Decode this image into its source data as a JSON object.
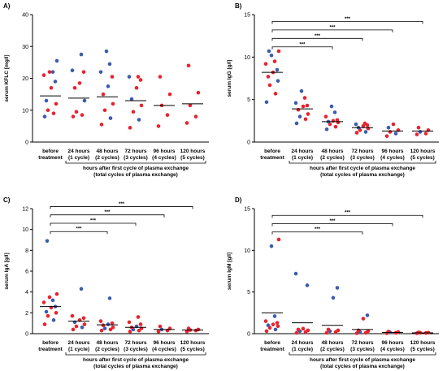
{
  "colors": {
    "blue": "#3a5dae",
    "red": "#e8232d",
    "axis": "#000000"
  },
  "x_axis_caption": {
    "line1": "hours after first cycle of plasma exchange",
    "line2": "(total cycles of plasma exchange)"
  },
  "categories": [
    [
      "before",
      "treatment"
    ],
    [
      "24 hours",
      "(1 cycle)"
    ],
    [
      "48 hours",
      "(2 cycles)"
    ],
    [
      "72 hours",
      "(3 cycles)"
    ],
    [
      "96 hours",
      "(4 cycles)"
    ],
    [
      "120 hours",
      "(5 cycles)"
    ]
  ],
  "chart_data": [
    {
      "panel": "A)",
      "type": "scatter",
      "ylabel": "serum KFLC [mg/l]",
      "ylim": [
        0,
        40
      ],
      "yticks": [
        0,
        10,
        20,
        30,
        40
      ],
      "means": [
        14.5,
        13.8,
        14.2,
        13.0,
        11.5,
        12.0
      ],
      "points": [
        [
          [
            8,
            "b"
          ],
          [
            9,
            "r"
          ],
          [
            10,
            "r"
          ],
          [
            12,
            "r"
          ],
          [
            13,
            "b"
          ],
          [
            17,
            "r"
          ],
          [
            19,
            "b"
          ],
          [
            21,
            "r"
          ],
          [
            22,
            "b"
          ],
          [
            22,
            "r"
          ],
          [
            25.5,
            "b"
          ]
        ],
        [
          [
            8,
            "r"
          ],
          [
            8.5,
            "r"
          ],
          [
            9.5,
            "r"
          ],
          [
            13,
            "b"
          ],
          [
            17,
            "r"
          ],
          [
            18.5,
            "r"
          ],
          [
            22,
            "r"
          ],
          [
            22.5,
            "b"
          ],
          [
            27.5,
            "b"
          ]
        ],
        [
          [
            5.5,
            "r"
          ],
          [
            7.5,
            "b"
          ],
          [
            10,
            "r"
          ],
          [
            12,
            "r"
          ],
          [
            15,
            "r"
          ],
          [
            17.5,
            "b"
          ],
          [
            20.5,
            "r"
          ],
          [
            22,
            "b"
          ],
          [
            24.5,
            "b"
          ],
          [
            28.5,
            "b"
          ]
        ],
        [
          [
            4.5,
            "r"
          ],
          [
            7,
            "b"
          ],
          [
            9.5,
            "r"
          ],
          [
            11.5,
            "r"
          ],
          [
            13.5,
            "b"
          ],
          [
            17,
            "r"
          ],
          [
            19.5,
            "r"
          ],
          [
            20.5,
            "b"
          ],
          [
            20.5,
            "r"
          ]
        ],
        [
          [
            5,
            "r"
          ],
          [
            8.5,
            "r"
          ],
          [
            11.5,
            "r"
          ],
          [
            15,
            "r"
          ],
          [
            20.5,
            "r"
          ]
        ],
        [
          [
            6,
            "r"
          ],
          [
            8,
            "r"
          ],
          [
            11.5,
            "r"
          ],
          [
            15.5,
            "r"
          ],
          [
            24,
            "r"
          ]
        ]
      ],
      "brackets": []
    },
    {
      "panel": "B)",
      "type": "scatter",
      "ylabel": "serum IgG [g/l]",
      "ylim": [
        0,
        15
      ],
      "yticks": [
        0,
        5,
        10,
        15
      ],
      "means": [
        8.2,
        3.9,
        2.4,
        1.7,
        1.3,
        1.3
      ],
      "points": [
        [
          [
            4.7,
            "b"
          ],
          [
            5.7,
            "r"
          ],
          [
            6.7,
            "r"
          ],
          [
            7.2,
            "b"
          ],
          [
            7.7,
            "r"
          ],
          [
            8.2,
            "r"
          ],
          [
            8.5,
            "b"
          ],
          [
            9.2,
            "r"
          ],
          [
            9.5,
            "r"
          ],
          [
            10.2,
            "b"
          ],
          [
            10.7,
            "r"
          ],
          [
            10.7,
            "b"
          ]
        ],
        [
          [
            2.2,
            "b"
          ],
          [
            2.7,
            "r"
          ],
          [
            3.0,
            "b"
          ],
          [
            3.3,
            "r"
          ],
          [
            3.8,
            "r"
          ],
          [
            4.2,
            "r"
          ],
          [
            4.3,
            "r"
          ],
          [
            4.6,
            "b"
          ],
          [
            5.2,
            "r"
          ],
          [
            6.0,
            "b"
          ]
        ],
        [
          [
            1.5,
            "b"
          ],
          [
            1.8,
            "r"
          ],
          [
            2.1,
            "r"
          ],
          [
            2.3,
            "r"
          ],
          [
            2.4,
            "b"
          ],
          [
            2.5,
            "r"
          ],
          [
            2.6,
            "r"
          ],
          [
            3.0,
            "r"
          ],
          [
            3.5,
            "b"
          ],
          [
            4.2,
            "b"
          ]
        ],
        [
          [
            1.1,
            "r"
          ],
          [
            1.2,
            "b"
          ],
          [
            1.4,
            "r"
          ],
          [
            1.6,
            "r"
          ],
          [
            1.7,
            "b"
          ],
          [
            1.9,
            "r"
          ],
          [
            2.0,
            "r"
          ],
          [
            2.1,
            "b"
          ],
          [
            2.2,
            "r"
          ]
        ],
        [
          [
            0.7,
            "r"
          ],
          [
            1.0,
            "b"
          ],
          [
            1.2,
            "r"
          ],
          [
            1.4,
            "r"
          ],
          [
            1.7,
            "b"
          ],
          [
            2.1,
            "r"
          ]
        ],
        [
          [
            0.9,
            "r"
          ],
          [
            1.0,
            "r"
          ],
          [
            1.2,
            "b"
          ],
          [
            1.4,
            "r"
          ],
          [
            1.7,
            "r"
          ]
        ]
      ],
      "brackets": [
        {
          "to": 2,
          "y": 11.2,
          "label": "***"
        },
        {
          "to": 3,
          "y": 12.2,
          "label": "***"
        },
        {
          "to": 4,
          "y": 13.2,
          "label": "***"
        },
        {
          "to": 5,
          "y": 14.2,
          "label": "***"
        }
      ]
    },
    {
      "panel": "C)",
      "type": "scatter",
      "ylabel": "serum IgA [g/l]",
      "ylim": [
        0,
        12
      ],
      "yticks": [
        0,
        2,
        4,
        6,
        8,
        10,
        12
      ],
      "means": [
        2.6,
        1.2,
        0.85,
        0.6,
        0.4,
        0.35
      ],
      "points": [
        [
          [
            0.9,
            "r"
          ],
          [
            1.3,
            "b"
          ],
          [
            1.7,
            "r"
          ],
          [
            2.0,
            "r"
          ],
          [
            2.1,
            "b"
          ],
          [
            2.5,
            "r"
          ],
          [
            2.6,
            "b"
          ],
          [
            3.0,
            "r"
          ],
          [
            3.2,
            "b"
          ],
          [
            3.5,
            "r"
          ],
          [
            3.8,
            "r"
          ],
          [
            8.9,
            "b"
          ]
        ],
        [
          [
            0.4,
            "r"
          ],
          [
            0.6,
            "b"
          ],
          [
            0.7,
            "r"
          ],
          [
            0.9,
            "r"
          ],
          [
            1.1,
            "b"
          ],
          [
            1.3,
            "r"
          ],
          [
            1.5,
            "r"
          ],
          [
            1.7,
            "r"
          ],
          [
            4.3,
            "b"
          ]
        ],
        [
          [
            0.3,
            "r"
          ],
          [
            0.4,
            "r"
          ],
          [
            0.5,
            "b"
          ],
          [
            0.6,
            "r"
          ],
          [
            0.8,
            "r"
          ],
          [
            0.9,
            "b"
          ],
          [
            1.0,
            "r"
          ],
          [
            1.2,
            "r"
          ],
          [
            3.4,
            "b"
          ]
        ],
        [
          [
            0.2,
            "r"
          ],
          [
            0.3,
            "r"
          ],
          [
            0.4,
            "b"
          ],
          [
            0.5,
            "r"
          ],
          [
            0.6,
            "r"
          ],
          [
            0.7,
            "b"
          ],
          [
            0.9,
            "r"
          ],
          [
            1.1,
            "r"
          ],
          [
            1.6,
            "r"
          ]
        ],
        [
          [
            0.2,
            "r"
          ],
          [
            0.3,
            "r"
          ],
          [
            0.4,
            "b"
          ],
          [
            0.5,
            "r"
          ],
          [
            0.7,
            "r"
          ]
        ],
        [
          [
            0.2,
            "r"
          ],
          [
            0.3,
            "r"
          ],
          [
            0.35,
            "r"
          ],
          [
            0.4,
            "r"
          ],
          [
            0.5,
            "r"
          ]
        ]
      ],
      "brackets": [
        {
          "to": 2,
          "y": 9.8,
          "label": "***"
        },
        {
          "to": 3,
          "y": 10.6,
          "label": "***"
        },
        {
          "to": 4,
          "y": 11.4,
          "label": "***"
        },
        {
          "to": 5,
          "y": 12.2,
          "label": "***"
        }
      ]
    },
    {
      "panel": "D)",
      "type": "scatter",
      "ylabel": "serum IgM [g/l]",
      "ylim": [
        0,
        15
      ],
      "yticks": [
        0,
        5,
        10,
        15
      ],
      "means": [
        2.5,
        1.3,
        1.0,
        0.5,
        0.15,
        0.1
      ],
      "points": [
        [
          [
            0.3,
            "r"
          ],
          [
            0.5,
            "b"
          ],
          [
            0.7,
            "r"
          ],
          [
            0.9,
            "r"
          ],
          [
            1.0,
            "b"
          ],
          [
            1.1,
            "r"
          ],
          [
            1.3,
            "r"
          ],
          [
            1.5,
            "r"
          ],
          [
            2.1,
            "b"
          ],
          [
            10.5,
            "b"
          ],
          [
            11.3,
            "r"
          ]
        ],
        [
          [
            0.1,
            "r"
          ],
          [
            0.2,
            "r"
          ],
          [
            0.3,
            "b"
          ],
          [
            0.4,
            "r"
          ],
          [
            0.5,
            "r"
          ],
          [
            0.6,
            "r"
          ],
          [
            5.8,
            "b"
          ],
          [
            7.2,
            "b"
          ]
        ],
        [
          [
            0.1,
            "r"
          ],
          [
            0.2,
            "r"
          ],
          [
            0.3,
            "b"
          ],
          [
            0.4,
            "r"
          ],
          [
            0.5,
            "r"
          ],
          [
            4.3,
            "b"
          ],
          [
            5.5,
            "b"
          ]
        ],
        [
          [
            0.05,
            "r"
          ],
          [
            0.1,
            "r"
          ],
          [
            0.2,
            "b"
          ],
          [
            0.3,
            "r"
          ],
          [
            0.4,
            "r"
          ],
          [
            1.8,
            "r"
          ],
          [
            2.2,
            "b"
          ]
        ],
        [
          [
            0.05,
            "r"
          ],
          [
            0.1,
            "r"
          ],
          [
            0.15,
            "b"
          ],
          [
            0.2,
            "r"
          ],
          [
            0.25,
            "r"
          ]
        ],
        [
          [
            0.05,
            "r"
          ],
          [
            0.08,
            "r"
          ],
          [
            0.1,
            "r"
          ],
          [
            0.12,
            "r"
          ],
          [
            0.15,
            "r"
          ]
        ]
      ],
      "brackets": [
        {
          "to": 3,
          "y": 12.2,
          "label": "***"
        },
        {
          "to": 4,
          "y": 13.2,
          "label": "***"
        },
        {
          "to": 5,
          "y": 14.2,
          "label": "***"
        }
      ]
    }
  ]
}
